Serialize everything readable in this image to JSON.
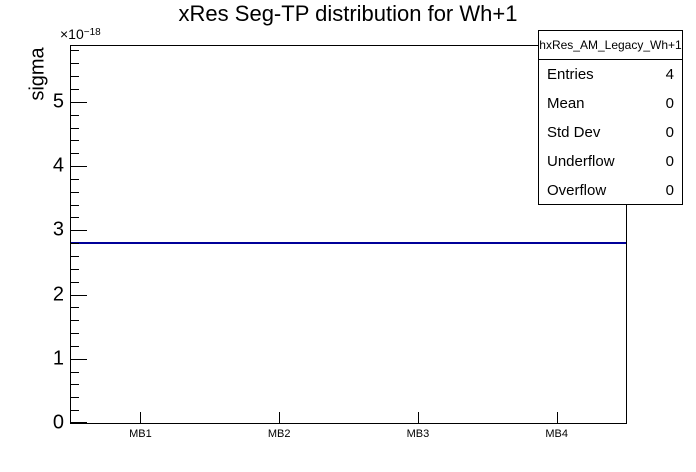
{
  "title": "xRes Seg-TP distribution for Wh+1",
  "y_axis": {
    "label": "sigma",
    "multiplier_base": "×10",
    "multiplier_exp": "−18",
    "major_tick_labels": [
      "0",
      "1",
      "2",
      "3",
      "4",
      "5"
    ]
  },
  "x_axis": {
    "labels": [
      "MB1",
      "MB2",
      "MB3",
      "MB4"
    ]
  },
  "stats_box": {
    "title": "hxRes_AM_Legacy_Wh+1",
    "rows": [
      {
        "label": "Entries",
        "value": "4"
      },
      {
        "label": "Mean",
        "value": "0"
      },
      {
        "label": "Std Dev",
        "value": "0"
      },
      {
        "label": "Underflow",
        "value": "0"
      },
      {
        "label": "Overflow",
        "value": "0"
      }
    ]
  },
  "colors": {
    "histogram_line": "#000099",
    "frame": "#000000",
    "background": "#ffffff",
    "text": "#000000"
  },
  "chart_data": {
    "type": "line",
    "style": "flat-histogram-line",
    "title": "xRes Seg-TP distribution for Wh+1",
    "xlabel": "",
    "ylabel": "sigma",
    "categories": [
      "MB1",
      "MB2",
      "MB3",
      "MB4"
    ],
    "values": [
      2.8e-18,
      2.8e-18,
      2.8e-18,
      2.8e-18
    ],
    "ylim": [
      0,
      5.87e-18
    ],
    "y_scale_factor": 1e-18,
    "y_major_step": 1e-18,
    "y_minor_step": 2e-19,
    "grid": false,
    "legend": "none",
    "line_color": "#000099",
    "annotations": {
      "stats": {
        "entries": 4,
        "mean": 0,
        "std_dev": 0,
        "underflow": 0,
        "overflow": 0
      }
    }
  }
}
